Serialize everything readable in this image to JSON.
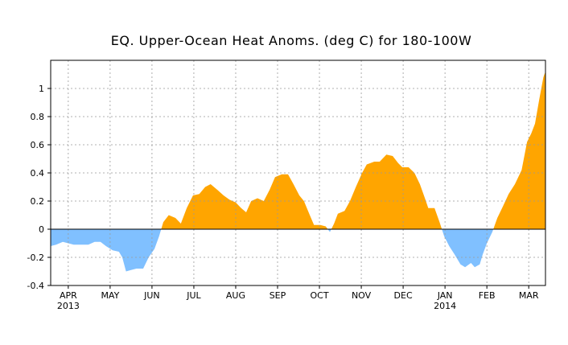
{
  "chart_data": {
    "type": "area",
    "title": "EQ. Upper-Ocean Heat Anoms. (deg C) for 180-100W",
    "x": [
      -0.42,
      -0.29,
      -0.13,
      0,
      0.13,
      0.29,
      0.48,
      0.63,
      0.77,
      0.9,
      1.06,
      1.21,
      1.29,
      1.38,
      1.5,
      1.63,
      1.79,
      1.92,
      2.06,
      2.17,
      2.27,
      2.4,
      2.56,
      2.69,
      2.83,
      2.98,
      3.13,
      3.27,
      3.4,
      3.56,
      3.71,
      3.85,
      4,
      4.13,
      4.25,
      4.37,
      4.52,
      4.67,
      4.81,
      4.94,
      5.1,
      5.25,
      5.38,
      5.52,
      5.63,
      5.77,
      5.87,
      6.02,
      6.15,
      6.25,
      6.35,
      6.44,
      6.6,
      6.73,
      6.87,
      7.02,
      7.13,
      7.31,
      7.44,
      7.6,
      7.75,
      7.88,
      7.98,
      8.13,
      8.27,
      8.4,
      8.52,
      8.6,
      8.75,
      8.87,
      8.98,
      9.1,
      9.23,
      9.37,
      9.48,
      9.62,
      9.71,
      9.83,
      9.9,
      10,
      10.13,
      10.25,
      10.38,
      10.52,
      10.67,
      10.83,
      10.96,
      11.06,
      11.15,
      11.25,
      11.35,
      11.4
    ],
    "values": [
      -0.12,
      -0.11,
      -0.09,
      -0.1,
      -0.11,
      -0.11,
      -0.11,
      -0.09,
      -0.09,
      -0.12,
      -0.15,
      -0.16,
      -0.2,
      -0.3,
      -0.29,
      -0.28,
      -0.28,
      -0.2,
      -0.14,
      -0.05,
      0.05,
      0.1,
      0.08,
      0.04,
      0.15,
      0.24,
      0.25,
      0.3,
      0.32,
      0.28,
      0.24,
      0.21,
      0.19,
      0.15,
      0.12,
      0.2,
      0.22,
      0.2,
      0.28,
      0.37,
      0.39,
      0.39,
      0.32,
      0.24,
      0.2,
      0.1,
      0.03,
      0.03,
      0.02,
      -0.02,
      0.04,
      0.11,
      0.13,
      0.2,
      0.3,
      0.4,
      0.46,
      0.48,
      0.48,
      0.53,
      0.52,
      0.47,
      0.44,
      0.44,
      0.4,
      0.32,
      0.22,
      0.15,
      0.15,
      0.05,
      -0.05,
      -0.12,
      -0.18,
      -0.25,
      -0.27,
      -0.24,
      -0.27,
      -0.25,
      -0.18,
      -0.1,
      -0.02,
      0.08,
      0.16,
      0.25,
      0.32,
      0.42,
      0.62,
      0.68,
      0.75,
      0.92,
      1.08,
      1.12
    ],
    "positive_color": "#ffa500",
    "negative_color": "#80c0ff",
    "xlim": [
      -0.42,
      11.4
    ],
    "xticks": [
      {
        "value": 0,
        "label": "APR 2013"
      },
      {
        "value": 1,
        "label": "MAY"
      },
      {
        "value": 2,
        "label": "JUN"
      },
      {
        "value": 3,
        "label": "JUL"
      },
      {
        "value": 4,
        "label": "AUG"
      },
      {
        "value": 5,
        "label": "SEP"
      },
      {
        "value": 6,
        "label": "OCT"
      },
      {
        "value": 7,
        "label": "NOV"
      },
      {
        "value": 8,
        "label": "DEC"
      },
      {
        "value": 9,
        "label": "JAN 2014"
      },
      {
        "value": 10,
        "label": "FEB"
      },
      {
        "value": 11,
        "label": "MAR"
      }
    ],
    "ylim": [
      -0.4,
      1.2
    ],
    "yticks": [
      -0.4,
      -0.2,
      0,
      0.2,
      0.4,
      0.6,
      0.8,
      1
    ],
    "grid": true
  }
}
